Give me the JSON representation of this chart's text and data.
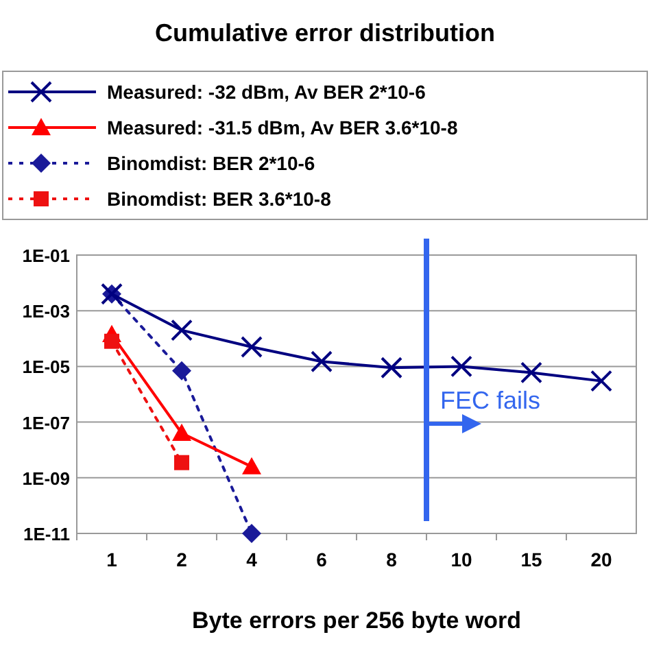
{
  "chart_data": {
    "type": "line",
    "title": "Cumulative error distribution",
    "xlabel": "Byte errors per 256 byte word",
    "categories": [
      "1",
      "2",
      "4",
      "6",
      "8",
      "10",
      "15",
      "20"
    ],
    "series": [
      {
        "name": "Measured: -32 dBm, Av BER 2*10-6",
        "color": "#000080",
        "marker": "cross",
        "line_style": "solid",
        "values": [
          0.004,
          0.0002,
          5e-05,
          1.5e-05,
          9e-06,
          1e-05,
          6e-06,
          3e-06
        ]
      },
      {
        "name": "Measured: -31.5 dBm, Av BER 3.6*10-8",
        "color": "#ff0000",
        "marker": "triangle",
        "line_style": "solid",
        "values": [
          0.00014,
          4e-08,
          2.5e-09,
          null,
          null,
          null,
          null,
          null
        ]
      },
      {
        "name": "Binomdist: BER 2*10-6",
        "color": "#1a1a99",
        "marker": "diamond",
        "line_style": "dotted",
        "values": [
          0.004,
          7e-06,
          1e-11,
          null,
          null,
          null,
          null,
          null
        ]
      },
      {
        "name": "Binomdist: BER 3.6*10-8",
        "color": "#ee1111",
        "marker": "square",
        "line_style": "dotted",
        "values": [
          8e-05,
          3.5e-09,
          null,
          null,
          null,
          null,
          null,
          null
        ]
      }
    ],
    "log": "y",
    "ylim": [
      1e-11,
      0.1
    ],
    "yticks": [
      {
        "value": 0.1,
        "label": "1E-01"
      },
      {
        "value": 0.001,
        "label": "1E-03"
      },
      {
        "value": 1e-05,
        "label": "1E-05"
      },
      {
        "value": 1e-07,
        "label": "1E-07"
      },
      {
        "value": 1e-09,
        "label": "1E-09"
      },
      {
        "value": 1e-11,
        "label": "1E-11"
      }
    ],
    "grid": "y",
    "legend": "top",
    "annotations": [
      "FEC fails"
    ]
  }
}
